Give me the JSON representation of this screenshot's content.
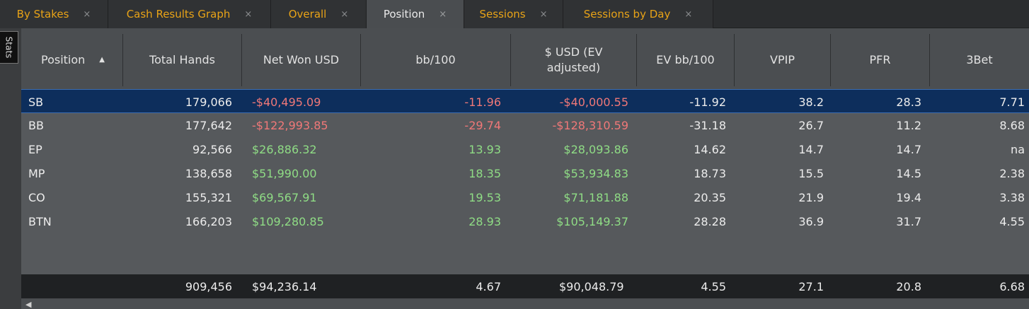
{
  "tabs": [
    {
      "label": "By Stakes",
      "active": false
    },
    {
      "label": "Cash Results Graph",
      "active": false
    },
    {
      "label": "Overall",
      "active": false
    },
    {
      "label": "Position",
      "active": true
    },
    {
      "label": "Sessions",
      "active": false
    },
    {
      "label": "Sessions by Day",
      "active": false
    }
  ],
  "tab_close_glyph": "×",
  "side_tab_label": "Stats",
  "columns": [
    {
      "label": "Position"
    },
    {
      "label": "Total Hands"
    },
    {
      "label": "Net Won USD"
    },
    {
      "label": "bb/100"
    },
    {
      "label": "$ USD (EV adjusted)"
    },
    {
      "label": "EV bb/100"
    },
    {
      "label": "VPIP"
    },
    {
      "label": "PFR"
    },
    {
      "label": "3Bet"
    }
  ],
  "sort": {
    "column": "Position",
    "direction": "ascending"
  },
  "rows": [
    {
      "position": "SB",
      "hands": "179,066",
      "net_won": "-$40,495.09",
      "bb100": "-11.96",
      "ev_usd": "-$40,000.55",
      "ev_bb100": "-11.92",
      "vpip": "38.2",
      "pfr": "28.3",
      "threebet": "7.71",
      "selected": true,
      "sign": "neg"
    },
    {
      "position": "BB",
      "hands": "177,642",
      "net_won": "-$122,993.85",
      "bb100": "-29.74",
      "ev_usd": "-$128,310.59",
      "ev_bb100": "-31.18",
      "vpip": "26.7",
      "pfr": "11.2",
      "threebet": "8.68",
      "selected": false,
      "sign": "neg"
    },
    {
      "position": "EP",
      "hands": "92,566",
      "net_won": "$26,886.32",
      "bb100": "13.93",
      "ev_usd": "$28,093.86",
      "ev_bb100": "14.62",
      "vpip": "14.7",
      "pfr": "14.7",
      "threebet": "na",
      "selected": false,
      "sign": "pos"
    },
    {
      "position": "MP",
      "hands": "138,658",
      "net_won": "$51,990.00",
      "bb100": "18.35",
      "ev_usd": "$53,934.83",
      "ev_bb100": "18.73",
      "vpip": "15.5",
      "pfr": "14.5",
      "threebet": "2.38",
      "selected": false,
      "sign": "pos"
    },
    {
      "position": "CO",
      "hands": "155,321",
      "net_won": "$69,567.91",
      "bb100": "19.53",
      "ev_usd": "$71,181.88",
      "ev_bb100": "20.35",
      "vpip": "21.9",
      "pfr": "19.4",
      "threebet": "3.38",
      "selected": false,
      "sign": "pos"
    },
    {
      "position": "BTN",
      "hands": "166,203",
      "net_won": "$109,280.85",
      "bb100": "28.93",
      "ev_usd": "$105,149.37",
      "ev_bb100": "28.28",
      "vpip": "36.9",
      "pfr": "31.7",
      "threebet": "4.55",
      "selected": false,
      "sign": "pos"
    }
  ],
  "totals": {
    "hands": "909,456",
    "net_won": "$94,236.14",
    "bb100": "4.67",
    "ev_usd": "$90,048.79",
    "ev_bb100": "4.55",
    "vpip": "27.1",
    "pfr": "20.8",
    "threebet": "6.68"
  },
  "icons": {
    "sort": "sort-ascending-icon",
    "scroll_left": "scroll-left-arrow-icon"
  },
  "colors": {
    "tab_text": "#e8a317",
    "selected_row": "#0d2e5c",
    "negative": "#f07878",
    "positive": "#8fdc85"
  }
}
